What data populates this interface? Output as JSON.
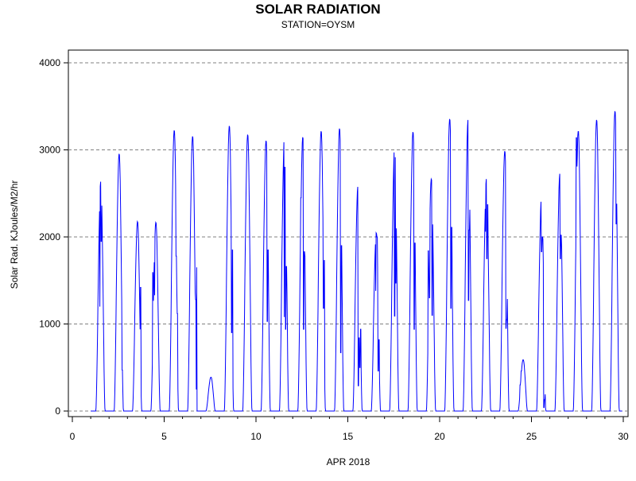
{
  "chart_data": {
    "type": "line",
    "title": "SOLAR RADIATION",
    "subtitle": "STATION=OYSM",
    "xlabel": "APR 2018",
    "ylabel": "Solar Rad. KJoules/M2/hr",
    "xlim": [
      0,
      30
    ],
    "ylim": [
      0,
      4000
    ],
    "x_ticks": [
      0,
      5,
      10,
      15,
      20,
      25,
      30
    ],
    "x_tick_labels": [
      "0",
      "5",
      "10",
      "15",
      "20",
      "25",
      "30"
    ],
    "y_ticks": [
      0,
      1000,
      2000,
      3000,
      4000
    ],
    "y_tick_labels": [
      "0",
      "1000",
      "2000",
      "3000",
      "4000"
    ],
    "grid": "horizontal-dashed",
    "line_color": "#0000ff",
    "daily_peaks": [
      {
        "day": 1,
        "peak": 2640,
        "dips": [
          [
            1.5,
            1200
          ],
          [
            1.58,
            1950
          ]
        ]
      },
      {
        "day": 2,
        "peak": 2960,
        "dips": [
          [
            2.72,
            470
          ]
        ]
      },
      {
        "day": 3,
        "peak": 2180,
        "dips": [
          [
            3.72,
            1420
          ]
        ]
      },
      {
        "day": 4,
        "peak": 2170,
        "dips": [
          [
            4.38,
            1590
          ],
          [
            4.48,
            1330
          ]
        ]
      },
      {
        "day": 5,
        "peak": 3230,
        "dips": [
          [
            5.72,
            1120
          ],
          [
            5.66,
            1780
          ]
        ]
      },
      {
        "day": 6,
        "peak": 3160,
        "dips": [
          [
            6.72,
            1280
          ],
          [
            6.78,
            1650
          ]
        ]
      },
      {
        "day": 7,
        "peak": 390,
        "dips": []
      },
      {
        "day": 8,
        "peak": 3280,
        "dips": [
          [
            8.68,
            900
          ],
          [
            8.72,
            1850
          ]
        ]
      },
      {
        "day": 9,
        "peak": 3180,
        "dips": []
      },
      {
        "day": 10,
        "peak": 3110,
        "dips": [
          [
            10.62,
            1030
          ],
          [
            10.66,
            1850
          ]
        ]
      },
      {
        "day": 11,
        "peak": 3160,
        "dips": [
          [
            11.55,
            1080
          ],
          [
            11.58,
            2800
          ],
          [
            11.62,
            940
          ],
          [
            11.66,
            1660
          ]
        ]
      },
      {
        "day": 12,
        "peak": 3150,
        "dips": [
          [
            12.45,
            2450
          ],
          [
            12.6,
            940
          ],
          [
            12.64,
            1830
          ]
        ]
      },
      {
        "day": 13,
        "peak": 3220,
        "dips": [
          [
            13.68,
            1180
          ],
          [
            13.72,
            1730
          ]
        ]
      },
      {
        "day": 14,
        "peak": 3250,
        "dips": [
          [
            14.62,
            670
          ],
          [
            14.66,
            1900
          ]
        ]
      },
      {
        "day": 15,
        "peak": 2580,
        "dips": [
          [
            15.58,
            290
          ],
          [
            15.62,
            840
          ],
          [
            15.66,
            500
          ],
          [
            15.7,
            940
          ]
        ]
      },
      {
        "day": 16,
        "peak": 2050,
        "dips": [
          [
            16.52,
            1380
          ],
          [
            16.6,
            2000
          ],
          [
            16.66,
            460
          ],
          [
            16.7,
            820
          ]
        ]
      },
      {
        "day": 17,
        "peak": 3040,
        "dips": [
          [
            17.55,
            1090
          ],
          [
            17.62,
            1470
          ]
        ]
      },
      {
        "day": 18,
        "peak": 3210,
        "dips": [
          [
            18.62,
            940
          ],
          [
            18.66,
            1930
          ]
        ]
      },
      {
        "day": 19,
        "peak": 2670,
        "dips": [
          [
            19.38,
            1840
          ],
          [
            19.45,
            1300
          ],
          [
            19.6,
            1100
          ]
        ]
      },
      {
        "day": 20,
        "peak": 3360,
        "dips": [
          [
            20.62,
            1180
          ],
          [
            20.66,
            2110
          ]
        ]
      },
      {
        "day": 21,
        "peak": 3350,
        "dips": [
          [
            21.58,
            1270
          ],
          [
            21.62,
            2080
          ]
        ]
      },
      {
        "day": 22,
        "peak": 2670,
        "dips": [
          [
            22.5,
            2060
          ],
          [
            22.58,
            1750
          ],
          [
            22.62,
            2370
          ]
        ]
      },
      {
        "day": 23,
        "peak": 2990,
        "dips": [
          [
            23.62,
            950
          ],
          [
            23.66,
            1050
          ]
        ]
      },
      {
        "day": 24,
        "peak": 590,
        "dips": [
          [
            24.38,
            300
          ],
          [
            24.45,
            460
          ]
        ]
      },
      {
        "day": 25,
        "peak": 2460,
        "dips": [
          [
            25.55,
            1830
          ],
          [
            25.6,
            2000
          ],
          [
            25.68,
            40
          ],
          [
            25.72,
            130
          ]
        ]
      },
      {
        "day": 26,
        "peak": 2730,
        "dips": [
          [
            26.58,
            1750
          ],
          [
            26.62,
            2020
          ]
        ]
      },
      {
        "day": 27,
        "peak": 3230,
        "dips": [
          [
            27.45,
            3140
          ],
          [
            27.5,
            2930
          ],
          [
            27.55,
            3210
          ]
        ]
      },
      {
        "day": 28,
        "peak": 3350,
        "dips": []
      },
      {
        "day": 29,
        "peak": 3450,
        "dips": [
          [
            29.62,
            2150
          ]
        ]
      }
    ]
  }
}
